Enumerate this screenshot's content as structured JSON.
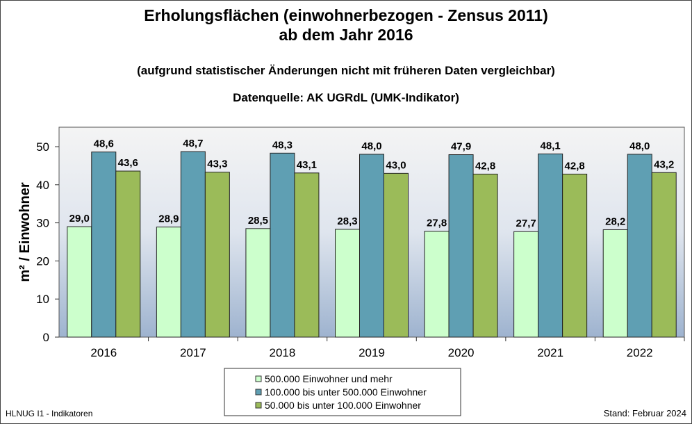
{
  "chart_data": {
    "type": "bar",
    "title": "Erholungsflächen (einwohnerbezogen - Zensus 2011)",
    "title_line2": "ab dem Jahr 2016",
    "subtitle": "(aufgrund statistischer Änderungen nicht mit früheren Daten vergleichbar)",
    "source": "Datenquelle: AK UGRdL (UMK-Indikator)",
    "ylabel": "m² / Einwohner",
    "xlabel": "",
    "ylim": [
      0,
      55
    ],
    "yticks": [
      0,
      10,
      20,
      30,
      40,
      50
    ],
    "grid": false,
    "legend_position": "bottom",
    "categories": [
      "2016",
      "2017",
      "2018",
      "2019",
      "2020",
      "2021",
      "2022"
    ],
    "series": [
      {
        "name": "500.000 Einwohner und mehr",
        "color": "#ccffcc",
        "values": [
          29.0,
          28.9,
          28.5,
          28.3,
          27.8,
          27.7,
          28.2
        ],
        "labels": [
          "29,0",
          "28,9",
          "28,5",
          "28,3",
          "27,8",
          "27,7",
          "28,2"
        ]
      },
      {
        "name": "100.000 bis unter 500.000 Einwohner",
        "color": "#5f9fb3",
        "values": [
          48.6,
          48.7,
          48.3,
          48.0,
          47.9,
          48.1,
          48.0
        ],
        "labels": [
          "48,6",
          "48,7",
          "48,3",
          "48,0",
          "47,9",
          "48,1",
          "48,0"
        ]
      },
      {
        "name": "50.000 bis unter 100.000 Einwohner",
        "color": "#9bbb59",
        "values": [
          43.6,
          43.3,
          43.1,
          43.0,
          42.8,
          42.8,
          43.2
        ],
        "labels": [
          "43,6",
          "43,3",
          "43,1",
          "43,0",
          "42,8",
          "42,8",
          "43,2"
        ]
      }
    ]
  },
  "footer": {
    "left": "HLNUG I1 - Indikatoren",
    "right": "Stand: Februar 2024"
  }
}
